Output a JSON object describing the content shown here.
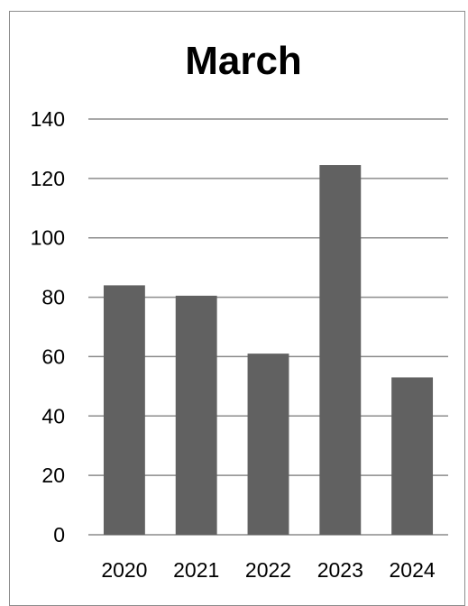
{
  "chart_data": {
    "type": "bar",
    "title": "March",
    "xlabel": "",
    "ylabel": "",
    "categories": [
      "2020",
      "2021",
      "2022",
      "2023",
      "2024"
    ],
    "series": [
      {
        "values": [
          84,
          80.5,
          61,
          124.5,
          53
        ]
      }
    ],
    "ylim": [
      0,
      140
    ],
    "yticks": [
      0,
      20,
      40,
      60,
      80,
      100,
      120,
      140
    ],
    "grid": true,
    "legend": "none"
  },
  "colors": {
    "bar": "#616161",
    "grid": "#8c8c8c",
    "frame": "#8c8c8c",
    "text": "#000000"
  }
}
